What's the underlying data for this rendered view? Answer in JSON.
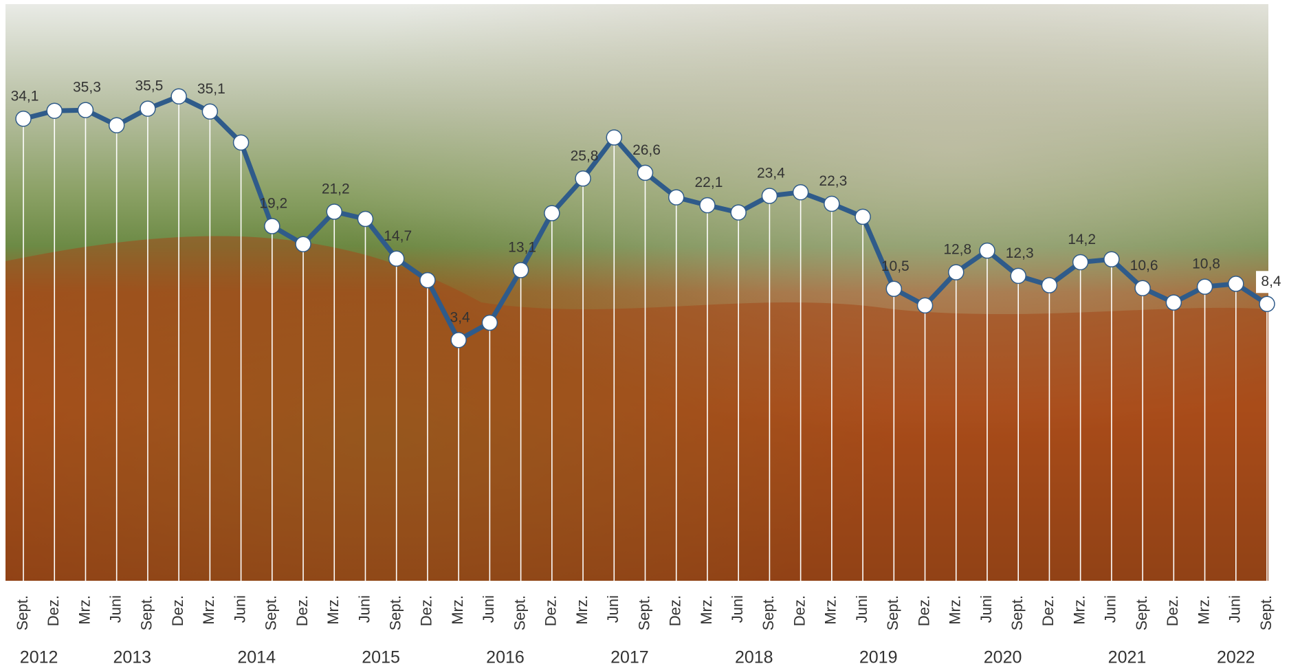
{
  "chart_data": {
    "type": "line",
    "categories": [
      "Sept.",
      "Dez.",
      "Mrz.",
      "Juni",
      "Sept.",
      "Dez.",
      "Mrz.",
      "Juni",
      "Sept.",
      "Dez.",
      "Mrz.",
      "Juni",
      "Sept.",
      "Dez.",
      "Mrz.",
      "Juni",
      "Sept.",
      "Dez.",
      "Mrz.",
      "Juni",
      "Sept.",
      "Dez.",
      "Mrz.",
      "Juni",
      "Sept.",
      "Dez.",
      "Mrz.",
      "Juni",
      "Sept.",
      "Dez.",
      "Mrz.",
      "Juni",
      "Sept.",
      "Dez.",
      "Mrz.",
      "Juni",
      "Sept.",
      "Dez.",
      "Mrz.",
      "Juni",
      "Sept."
    ],
    "x_groups": [
      {
        "label": "2012",
        "size": 2
      },
      {
        "label": "2013",
        "size": 4
      },
      {
        "label": "2014",
        "size": 4
      },
      {
        "label": "2015",
        "size": 4
      },
      {
        "label": "2016",
        "size": 4
      },
      {
        "label": "2017",
        "size": 4
      },
      {
        "label": "2018",
        "size": 4
      },
      {
        "label": "2019",
        "size": 4
      },
      {
        "label": "2020",
        "size": 4
      },
      {
        "label": "2021",
        "size": 4
      },
      {
        "label": "2022",
        "size": 3
      }
    ],
    "values": [
      34.1,
      35.2,
      35.3,
      33.2,
      35.5,
      37.2,
      35.1,
      30.8,
      19.2,
      16.7,
      21.2,
      20.2,
      14.7,
      11.7,
      3.4,
      5.8,
      13.1,
      21.0,
      25.8,
      31.5,
      26.6,
      23.2,
      22.1,
      21.1,
      23.4,
      23.9,
      22.3,
      20.5,
      10.5,
      8.2,
      12.8,
      15.8,
      12.3,
      11.0,
      14.2,
      14.6,
      10.6,
      8.6,
      10.8,
      11.2,
      8.4
    ],
    "value_labels": [
      "34,1",
      null,
      "35,3",
      null,
      "35,5",
      null,
      "35,1",
      null,
      "19,2",
      null,
      "21,2",
      null,
      "14,7",
      null,
      "3,4",
      null,
      "13,1",
      null,
      "25,8",
      null,
      "26,6",
      null,
      "22,1",
      null,
      "23,4",
      null,
      "22,3",
      null,
      "10,5",
      null,
      "12,8",
      null,
      "12,3",
      null,
      "14,2",
      null,
      "10,6",
      null,
      "10,8",
      null,
      "8,4"
    ],
    "color": "#2f5b8a",
    "ylim": [
      -30,
      50
    ]
  }
}
